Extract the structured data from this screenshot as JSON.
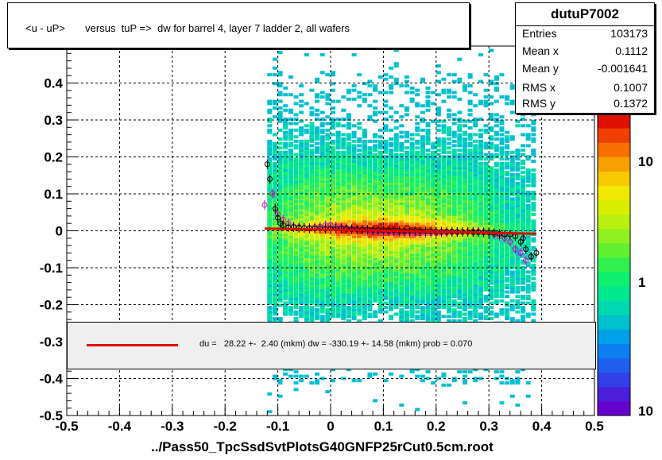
{
  "chart_data": {
    "type": "heatmap",
    "title": "<u - uP>       versus  tuP =>  dw for barrel 4, layer 7 ladder 2, all wafers",
    "xlabel": "../Pass50_TpcSsdSvtPlotsG40GNFP25rCut0.5cm.root",
    "xlim": [
      -0.5,
      0.5
    ],
    "ylim": [
      -0.5,
      0.5
    ],
    "x_ticks": [
      "-0.5",
      "-0.4",
      "-0.3",
      "-0.2",
      "-0.1",
      "0",
      "0.1",
      "0.2",
      "0.3",
      "0.4",
      "0.5"
    ],
    "y_ticks": [
      "-0.5",
      "-0.4",
      "-0.3",
      "-0.2",
      "-0.1",
      "0",
      "0.1",
      "0.2",
      "0.3",
      "0.4"
    ],
    "z_ticks": [
      "1",
      "10",
      "10"
    ],
    "grid": true,
    "stats": {
      "name": "dutuP7002",
      "rows": [
        {
          "label": "Entries",
          "value": "103173"
        },
        {
          "label": "Mean x",
          "value": "0.1112"
        },
        {
          "label": "Mean y",
          "value": "-0.001641"
        },
        {
          "label": "RMS x",
          "value": "0.1007"
        },
        {
          "label": "RMS y",
          "value": "0.1372"
        }
      ]
    },
    "fit": {
      "legend": "du =   28.22 +-  2.40 (mkm) dw = -330.19 +- 14.58 (mkm) prob = 0.070",
      "color": "#e00000",
      "x_range": [
        -0.125,
        0.39
      ],
      "y_range": [
        0.006,
        -0.008
      ]
    },
    "profile_black": {
      "x": [
        -0.12,
        -0.115,
        -0.105,
        -0.1,
        -0.095,
        -0.09,
        -0.08,
        -0.07,
        -0.06,
        -0.05,
        -0.04,
        -0.03,
        -0.02,
        -0.01,
        0.0,
        0.01,
        0.02,
        0.03,
        0.04,
        0.05,
        0.06,
        0.07,
        0.08,
        0.09,
        0.1,
        0.11,
        0.12,
        0.13,
        0.14,
        0.15,
        0.16,
        0.17,
        0.18,
        0.19,
        0.2,
        0.21,
        0.22,
        0.23,
        0.24,
        0.25,
        0.26,
        0.27,
        0.28,
        0.29,
        0.3,
        0.31,
        0.32,
        0.33,
        0.34,
        0.35,
        0.36,
        0.365,
        0.37,
        0.38,
        0.39
      ],
      "y": [
        0.18,
        0.14,
        0.06,
        0.035,
        0.02,
        0.015,
        0.01,
        0.01,
        0.008,
        0.008,
        0.006,
        0.006,
        0.006,
        0.005,
        0.006,
        0.006,
        0.006,
        0.005,
        0.004,
        0.004,
        0.003,
        0.003,
        0.002,
        0.002,
        0.002,
        0.001,
        0.001,
        0.0,
        0.0,
        0.0,
        0.0,
        -0.001,
        -0.001,
        -0.001,
        -0.002,
        -0.002,
        -0.002,
        -0.002,
        -0.003,
        -0.003,
        -0.003,
        -0.004,
        -0.004,
        -0.005,
        -0.005,
        -0.006,
        -0.008,
        -0.01,
        -0.01,
        -0.015,
        -0.03,
        -0.02,
        -0.05,
        -0.07,
        -0.06
      ]
    },
    "profile_magenta": {
      "x": [
        -0.125,
        -0.11,
        -0.1,
        -0.09,
        -0.08,
        -0.07,
        -0.06,
        -0.05,
        -0.04,
        -0.03,
        -0.02,
        -0.01,
        0.0,
        0.01,
        0.02,
        0.03,
        0.04,
        0.05,
        0.06,
        0.07,
        0.08,
        0.09,
        0.1,
        0.11,
        0.12,
        0.13,
        0.14,
        0.15,
        0.16,
        0.17,
        0.18,
        0.19,
        0.2,
        0.21,
        0.22,
        0.23,
        0.24,
        0.25,
        0.26,
        0.27,
        0.28,
        0.29,
        0.3,
        0.31,
        0.32,
        0.33,
        0.34,
        0.35,
        0.36,
        0.37,
        0.38
      ],
      "y": [
        0.07,
        0.1,
        0.045,
        0.03,
        0.02,
        0.012,
        0.01,
        0.008,
        0.008,
        0.01,
        0.012,
        0.015,
        0.015,
        0.012,
        0.01,
        0.008,
        0.005,
        0.003,
        0.002,
        0.0,
        -0.002,
        -0.002,
        -0.003,
        -0.004,
        -0.005,
        -0.005,
        -0.006,
        -0.006,
        -0.007,
        -0.007,
        -0.007,
        -0.006,
        -0.006,
        -0.005,
        -0.005,
        -0.004,
        -0.004,
        -0.003,
        -0.003,
        -0.002,
        -0.002,
        -0.003,
        -0.005,
        -0.01,
        -0.015,
        -0.02,
        -0.03,
        -0.05,
        -0.06,
        -0.08,
        -0.07
      ]
    }
  }
}
